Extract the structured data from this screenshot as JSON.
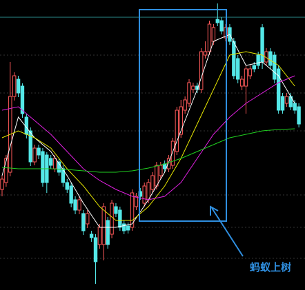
{
  "chart_data": {
    "type": "candlestick",
    "annotation": "蚂蚁上树",
    "up_color": "#ff5a5a",
    "down_color": "#54e8e8",
    "xlim": [
      0,
      74
    ],
    "ylim": [
      0,
      421
    ],
    "open": [
      146,
      156,
      171,
      281,
      306,
      296,
      251,
      231,
      186,
      206,
      201,
      196,
      191,
      176,
      186,
      176,
      156,
      151,
      131,
      116,
      111,
      96,
      81,
      76,
      66,
      66,
      101,
      81,
      121,
      116,
      96,
      93,
      91,
      121,
      143,
      126,
      131,
      146,
      151,
      166,
      183,
      176,
      181,
      201,
      226,
      261,
      271,
      291,
      296,
      291,
      341,
      346,
      361,
      393,
      391,
      366,
      381,
      361,
      336,
      296,
      296,
      311,
      326,
      341,
      381,
      331,
      346,
      341,
      321,
      281,
      271,
      281,
      271,
      266
    ],
    "high": [
      166,
      196,
      331,
      316,
      311,
      300,
      256,
      236,
      211,
      211,
      206,
      200,
      196,
      196,
      191,
      181,
      161,
      156,
      136,
      136,
      116,
      116,
      86,
      81,
      96,
      126,
      106,
      131,
      126,
      121,
      101,
      98,
      146,
      141,
      148,
      156,
      161,
      171,
      186,
      186,
      188,
      196,
      221,
      266,
      276,
      281,
      306,
      301,
      301,
      351,
      361,
      391,
      386,
      416,
      396,
      386,
      386,
      366,
      341,
      311,
      326,
      326,
      331,
      346,
      386,
      351,
      351,
      346,
      326,
      286,
      286,
      286,
      276,
      271
    ],
    "low": [
      136,
      150,
      165,
      275,
      280,
      250,
      220,
      180,
      181,
      190,
      150,
      141,
      176,
      171,
      166,
      150,
      141,
      120,
      110,
      110,
      80,
      90,
      70,
      9,
      60,
      43,
      60,
      75,
      106,
      86,
      81,
      82,
      86,
      116,
      131,
      121,
      126,
      141,
      146,
      161,
      171,
      171,
      176,
      196,
      221,
      256,
      266,
      286,
      286,
      286,
      336,
      341,
      356,
      383,
      371,
      361,
      356,
      306,
      300,
      290,
      256,
      306,
      316,
      321,
      321,
      326,
      321,
      300,
      256,
      256,
      266,
      261,
      256,
      236
    ],
    "close": [
      161,
      191,
      281,
      311,
      286,
      256,
      226,
      186,
      206,
      196,
      156,
      156,
      181,
      191,
      171,
      156,
      146,
      126,
      116,
      131,
      86,
      111,
      76,
      41,
      91,
      121,
      66,
      126,
      111,
      91,
      86,
      87,
      141,
      136,
      136,
      151,
      156,
      166,
      181,
      181,
      176,
      191,
      216,
      261,
      266,
      276,
      301,
      296,
      291,
      346,
      346,
      386,
      381,
      388,
      376,
      381,
      361,
      311,
      306,
      306,
      321,
      321,
      321,
      326,
      331,
      346,
      326,
      306,
      261,
      261,
      281,
      266,
      261,
      241
    ],
    "series": [
      {
        "color": "#ffffff",
        "x": [
          0,
          4,
          8,
          12,
          16,
          20,
          24,
          28,
          32,
          36,
          40,
          44,
          48,
          52,
          56,
          60,
          64,
          68,
          72
        ],
        "values": [
          166,
          251,
          221,
          201,
          166,
          126,
          91,
          91,
          96,
          131,
          171,
          231,
          291,
          361,
          371,
          326,
          331,
          311,
          271
        ]
      },
      {
        "color": "#e6e600",
        "x": [
          0,
          4,
          8,
          12,
          16,
          20,
          24,
          28,
          32,
          36,
          40,
          44,
          48,
          52,
          56,
          60,
          64,
          68,
          72
        ],
        "values": [
          221,
          231,
          221,
          206,
          176,
          151,
          121,
          101,
          101,
          121,
          151,
          191,
          241,
          291,
          341,
          346,
          341,
          326,
          296
        ]
      },
      {
        "color": "#e020e0",
        "x": [
          0,
          4,
          8,
          12,
          16,
          20,
          24,
          28,
          32,
          36,
          40,
          44,
          48,
          52,
          56,
          60,
          64,
          68,
          72
        ],
        "values": [
          261,
          266,
          246,
          226,
          201,
          176,
          159,
          146,
          136,
          131,
          136,
          156,
          191,
          226,
          251,
          271,
          286,
          301,
          311
        ]
      },
      {
        "color": "#20d020",
        "x": [
          0,
          4,
          8,
          12,
          16,
          20,
          24,
          28,
          32,
          36,
          40,
          44,
          48,
          52,
          56,
          60,
          64,
          68,
          72
        ],
        "values": [
          178,
          176,
          176,
          176,
          175,
          173,
          171,
          171,
          173,
          177,
          183,
          191,
          201,
          211,
          221,
          226,
          231,
          233,
          234
        ]
      }
    ]
  }
}
